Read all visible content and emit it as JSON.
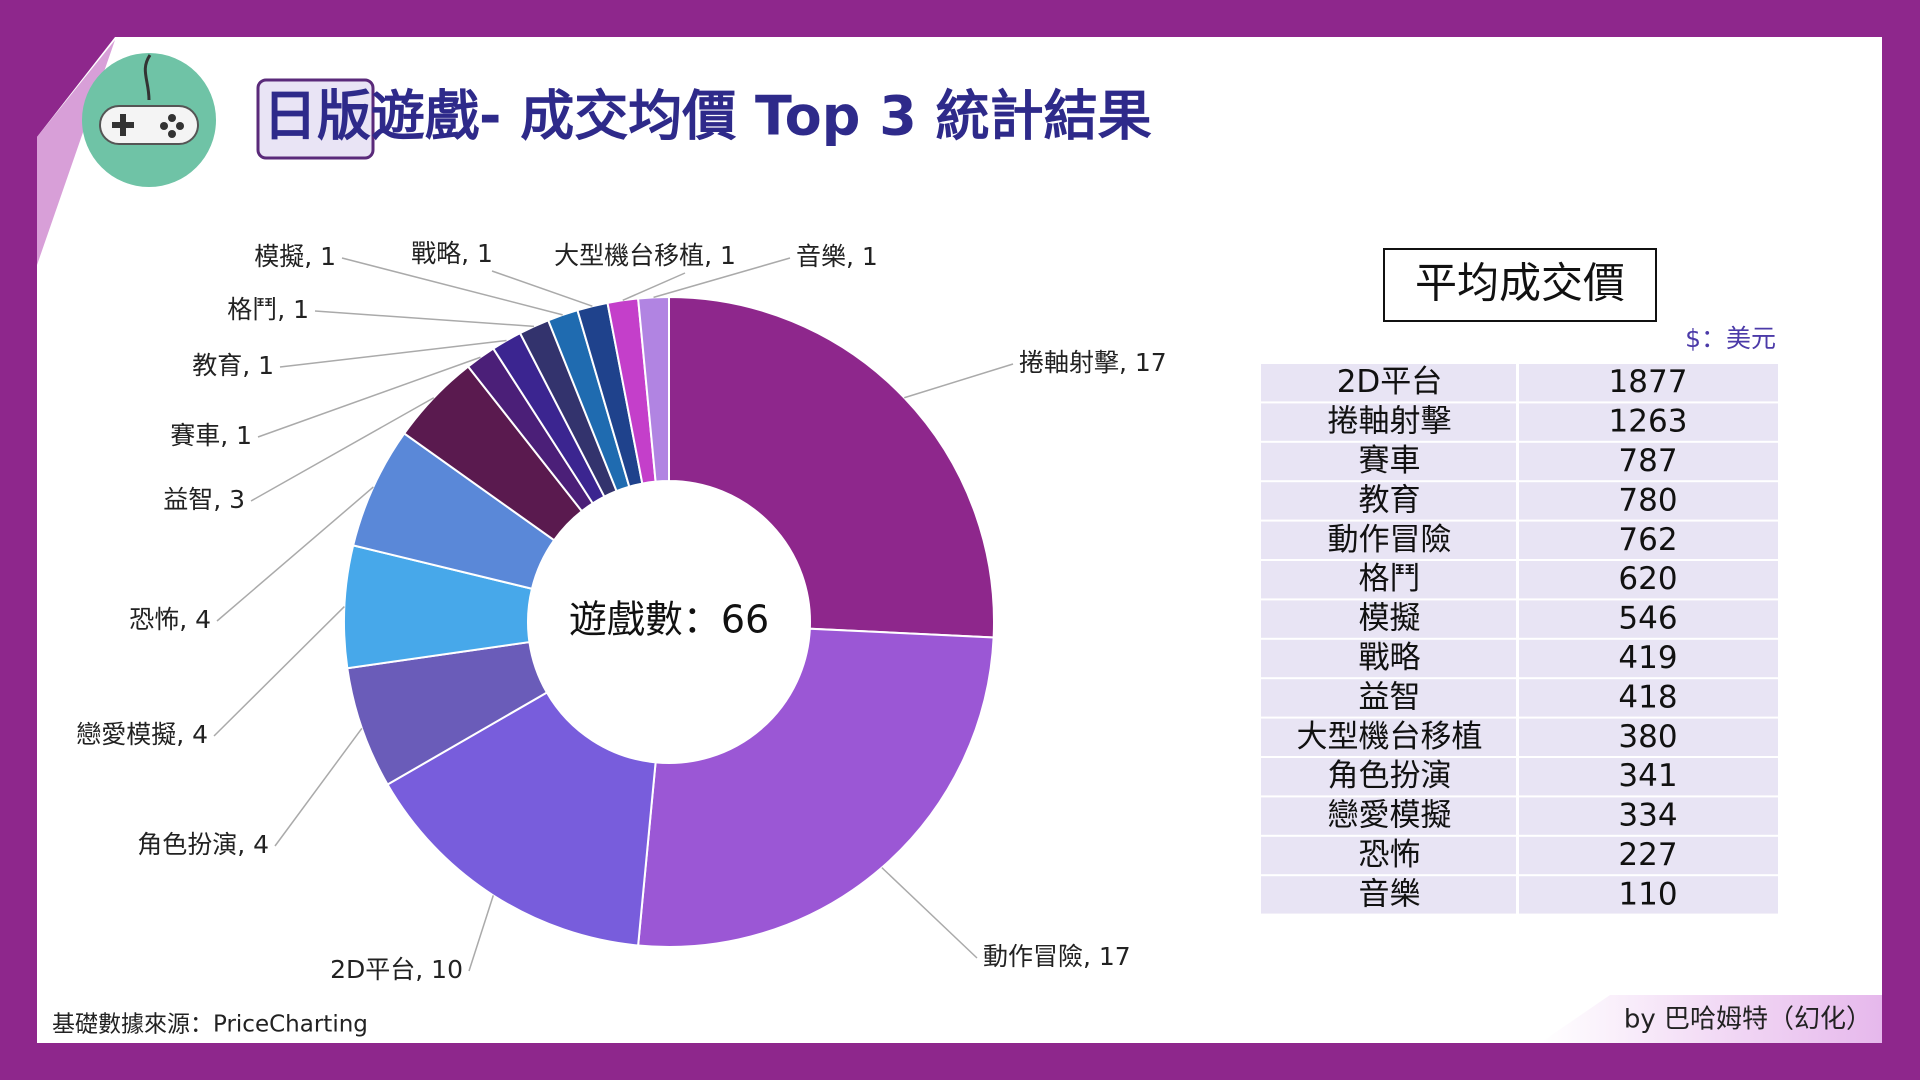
{
  "header": {
    "title": "日版遊戲- 成交均價 Top 3 統計結果"
  },
  "chart_data": {
    "type": "donut",
    "center_label": "遊戲數：66",
    "values": [
      17,
      17,
      10,
      4,
      4,
      4,
      3,
      1,
      1,
      1,
      1,
      1,
      1,
      1
    ],
    "value_labels": [
      "捲軸射擊, 17",
      "動作冒險, 17",
      "2D平台, 10",
      "角色扮演, 4",
      "戀愛模擬, 4",
      "恐怖, 4",
      "益智, 3",
      "賽車, 1",
      "教育, 1",
      "格鬥, 1",
      "模擬, 1",
      "戰略, 1",
      "大型機台移植, 1",
      "音樂, 1"
    ],
    "colors": [
      "#8e278c",
      "#9b57d5",
      "#785ddc",
      "#6a5cb9",
      "#47a8ea",
      "#5a88d8",
      "#5a1a4f",
      "#4b1f78",
      "#3b2590",
      "#33336d",
      "#1f6bb0",
      "#1f428c",
      "#c43fca",
      "#b184e2"
    ]
  },
  "table": {
    "title": "平均成交價",
    "unit": "$：美元",
    "rows": [
      [
        "2D平台",
        1877
      ],
      [
        "捲軸射擊",
        1263
      ],
      [
        "賽車",
        787
      ],
      [
        "教育",
        780
      ],
      [
        "動作冒險",
        762
      ],
      [
        "格鬥",
        620
      ],
      [
        "模擬",
        546
      ],
      [
        "戰略",
        419
      ],
      [
        "益智",
        418
      ],
      [
        "大型機台移植",
        380
      ],
      [
        "角色扮演",
        341
      ],
      [
        "戀愛模擬",
        334
      ],
      [
        "恐怖",
        227
      ],
      [
        "音樂",
        110
      ]
    ]
  },
  "footer": {
    "source": "基礎數據來源：PriceCharting",
    "credit": "by 巴哈姆特（幻化）"
  }
}
